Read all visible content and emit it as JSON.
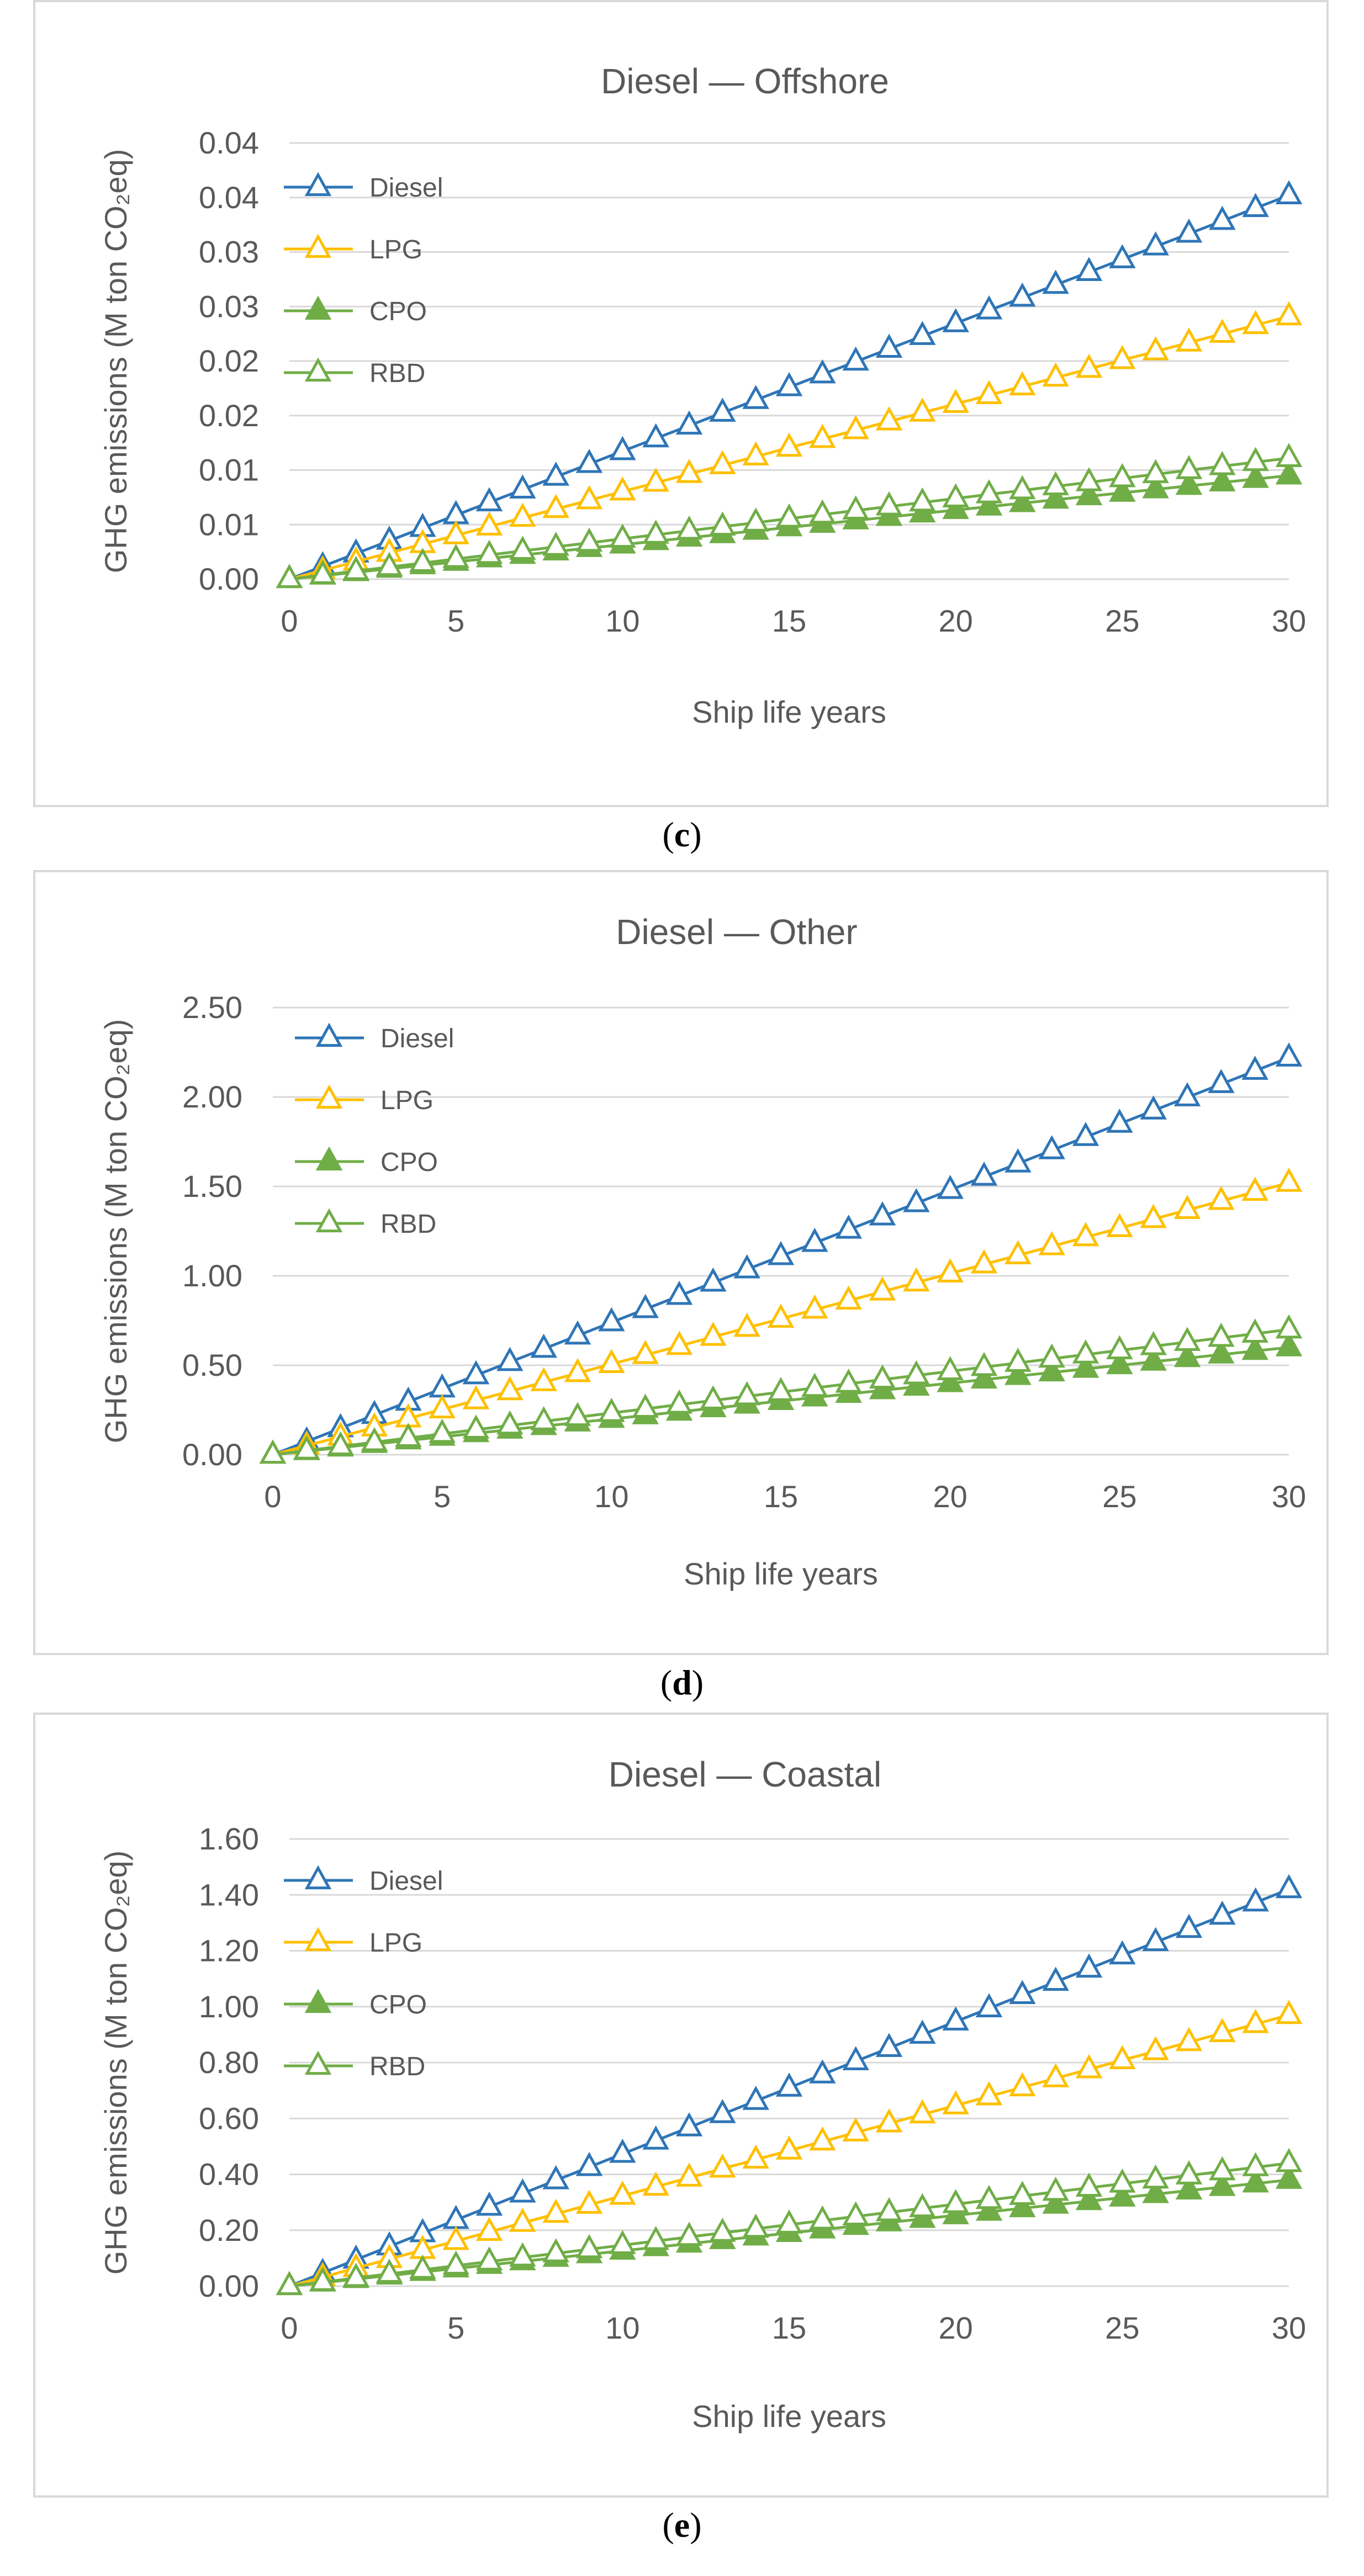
{
  "chart_data": [
    {
      "type": "line",
      "panel_label": "c",
      "title": "Diesel — Offshore",
      "xlabel": "Ship life years",
      "ylabel": "GHG emissions (M ton CO₂eq)",
      "x": [
        0,
        1,
        2,
        3,
        4,
        5,
        6,
        7,
        8,
        9,
        10,
        11,
        12,
        13,
        14,
        15,
        16,
        17,
        18,
        19,
        20,
        21,
        22,
        23,
        24,
        25,
        26,
        27,
        28,
        29,
        30
      ],
      "xticks": [
        0,
        5,
        10,
        15,
        20,
        25,
        30
      ],
      "xlim": [
        0,
        30
      ],
      "ylim": [
        0,
        0.04
      ],
      "yticks": [
        0,
        0.005,
        0.01,
        0.015,
        0.02,
        0.025,
        0.03,
        0.035,
        0.04
      ],
      "ytick_labels": [
        "0.00",
        "0.01",
        "0.01",
        "0.02",
        "0.02",
        "0.03",
        "0.03",
        "0.04",
        "0.04"
      ],
      "grid": true,
      "legend_position": "top-left",
      "series": [
        {
          "name": "Diesel",
          "color": "#2e75b6",
          "marker": "triangle-open",
          "end_value": 0.0352
        },
        {
          "name": "LPG",
          "color": "#ffc000",
          "marker": "triangle-open",
          "end_value": 0.0241
        },
        {
          "name": "CPO",
          "color": "#70ad47",
          "marker": "triangle-filled",
          "end_value": 0.0095
        },
        {
          "name": "RBD",
          "color": "#70ad47",
          "marker": "triangle-open",
          "end_value": 0.0111
        }
      ]
    },
    {
      "type": "line",
      "panel_label": "d",
      "title": "Diesel — Other",
      "xlabel": "Ship life years",
      "ylabel": "GHG emissions (M ton CO₂eq)",
      "x": [
        0,
        1,
        2,
        3,
        4,
        5,
        6,
        7,
        8,
        9,
        10,
        11,
        12,
        13,
        14,
        15,
        16,
        17,
        18,
        19,
        20,
        21,
        22,
        23,
        24,
        25,
        26,
        27,
        28,
        29,
        30
      ],
      "xticks": [
        0,
        5,
        10,
        15,
        20,
        25,
        30
      ],
      "xlim": [
        0,
        30
      ],
      "ylim": [
        0,
        2.5
      ],
      "yticks": [
        0,
        0.5,
        1.0,
        1.5,
        2.0,
        2.5
      ],
      "ytick_labels": [
        "0.00",
        "0.50",
        "1.00",
        "1.50",
        "2.00",
        "2.50"
      ],
      "grid": true,
      "legend_position": "top-left",
      "series": [
        {
          "name": "Diesel",
          "color": "#2e75b6",
          "marker": "triangle-open",
          "end_value": 2.22
        },
        {
          "name": "LPG",
          "color": "#ffc000",
          "marker": "triangle-open",
          "end_value": 1.52
        },
        {
          "name": "CPO",
          "color": "#70ad47",
          "marker": "triangle-filled",
          "end_value": 0.6
        },
        {
          "name": "RBD",
          "color": "#70ad47",
          "marker": "triangle-open",
          "end_value": 0.7
        }
      ]
    },
    {
      "type": "line",
      "panel_label": "e",
      "title": "Diesel — Coastal",
      "xlabel": "Ship life years",
      "ylabel": "GHG emissions (M ton CO₂eq)",
      "x": [
        0,
        1,
        2,
        3,
        4,
        5,
        6,
        7,
        8,
        9,
        10,
        11,
        12,
        13,
        14,
        15,
        16,
        17,
        18,
        19,
        20,
        21,
        22,
        23,
        24,
        25,
        26,
        27,
        28,
        29,
        30
      ],
      "xticks": [
        0,
        5,
        10,
        15,
        20,
        25,
        30
      ],
      "xlim": [
        0,
        30
      ],
      "ylim": [
        0,
        1.6
      ],
      "yticks": [
        0,
        0.2,
        0.4,
        0.6,
        0.8,
        1.0,
        1.2,
        1.4,
        1.6
      ],
      "ytick_labels": [
        "0.00",
        "0.20",
        "0.40",
        "0.60",
        "0.80",
        "1.00",
        "1.20",
        "1.40",
        "1.60"
      ],
      "grid": true,
      "legend_position": "top-left",
      "series": [
        {
          "name": "Diesel",
          "color": "#2e75b6",
          "marker": "triangle-open",
          "end_value": 1.42
        },
        {
          "name": "LPG",
          "color": "#ffc000",
          "marker": "triangle-open",
          "end_value": 0.97
        },
        {
          "name": "CPO",
          "color": "#70ad47",
          "marker": "triangle-filled",
          "end_value": 0.38
        },
        {
          "name": "RBD",
          "color": "#70ad47",
          "marker": "triangle-open",
          "end_value": 0.44
        }
      ]
    }
  ],
  "colors": {
    "diesel": "#2e75b6",
    "lpg": "#ffc000",
    "cpo": "#70ad47",
    "rbd": "#70ad47",
    "grid": "#d9d9d9",
    "text": "#595959"
  }
}
